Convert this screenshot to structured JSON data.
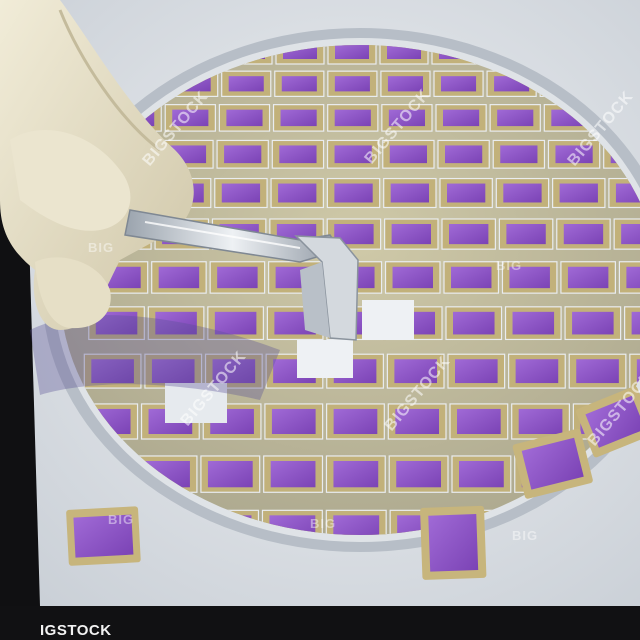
{
  "watermark": {
    "main": "BIGSTOCK",
    "small": "BIG"
  },
  "footer": {
    "logo_text": "IGSTOCK"
  },
  "colors": {
    "die_purple": "#8e52c8",
    "die_gold": "#c2b17a",
    "wafer_ring": "#9ea6b2",
    "glove": "#e3dcc4",
    "background": "#d9dde2"
  }
}
